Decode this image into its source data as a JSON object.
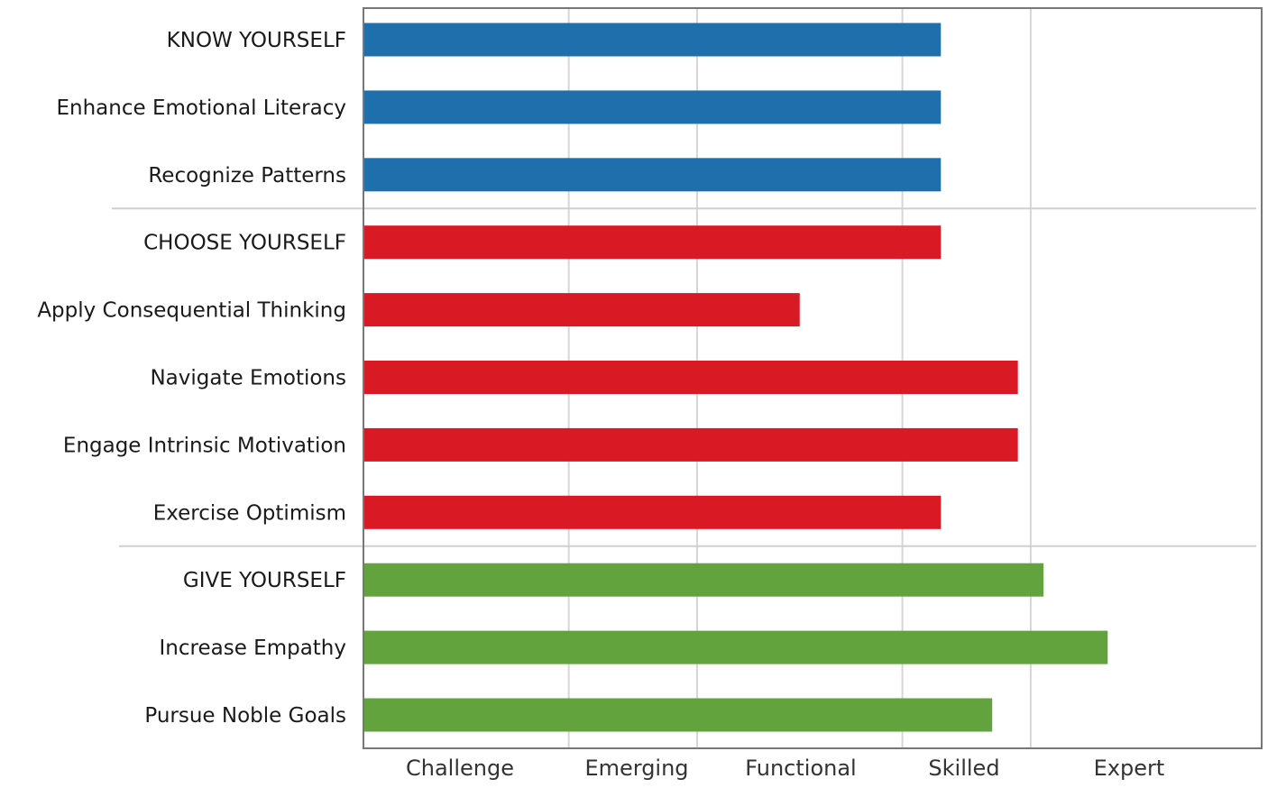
{
  "chart_data": {
    "type": "bar",
    "orientation": "horizontal",
    "title": "",
    "xlabel": "",
    "ylabel": "",
    "x_levels": [
      "Challenge",
      "Emerging",
      "Functional",
      "Skilled",
      "Expert"
    ],
    "xlim": [
      65,
      135
    ],
    "x_gridlines": [
      81,
      91,
      107,
      117
    ],
    "grid": true,
    "legend": "none",
    "colors": {
      "know": "#1f6fad",
      "choose": "#d91a24",
      "give": "#62a33d"
    },
    "groups": [
      {
        "id": "know",
        "color": "#1f6fad",
        "categories": [
          "KNOW YOURSELF",
          "Enhance Emotional Literacy",
          "Recognize Patterns"
        ],
        "values": [
          110,
          110,
          110
        ]
      },
      {
        "id": "choose",
        "color": "#d91a24",
        "categories": [
          "CHOOSE YOURSELF",
          "Apply Consequential Thinking",
          "Navigate Emotions",
          "Engage Intrinsic Motivation",
          "Exercise Optimism"
        ],
        "values": [
          110,
          99,
          116,
          116,
          110
        ]
      },
      {
        "id": "give",
        "color": "#62a33d",
        "categories": [
          "GIVE YOURSELF",
          "Increase Empathy",
          "Pursue Noble Goals"
        ],
        "values": [
          118,
          123,
          114
        ]
      }
    ]
  }
}
